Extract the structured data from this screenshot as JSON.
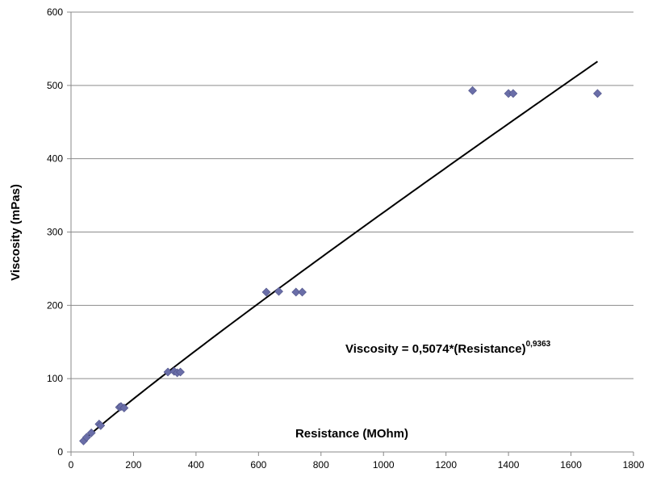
{
  "chart_data": {
    "type": "scatter",
    "xlabel": "Resistance (MOhm)",
    "ylabel": "Viscosity (mPas)",
    "xlim": [
      0,
      1800
    ],
    "ylim": [
      0,
      600
    ],
    "x_ticks": [
      "0",
      "200",
      "400",
      "600",
      "800",
      "1000",
      "1200",
      "1400",
      "1600",
      "1800"
    ],
    "y_ticks": [
      "0",
      "100",
      "200",
      "300",
      "400",
      "500",
      "600"
    ],
    "grid": "horizontal",
    "marker_color": "#6a6ea8",
    "series": [
      {
        "points": [
          [
            40,
            15
          ],
          [
            50,
            20
          ],
          [
            65,
            26
          ],
          [
            90,
            38
          ],
          [
            95,
            36
          ],
          [
            155,
            61
          ],
          [
            160,
            62
          ],
          [
            170,
            60
          ],
          [
            310,
            109
          ],
          [
            330,
            110
          ],
          [
            340,
            108
          ],
          [
            350,
            109
          ],
          [
            625,
            218
          ],
          [
            665,
            219
          ],
          [
            720,
            218
          ],
          [
            740,
            218
          ],
          [
            1285,
            493
          ],
          [
            1400,
            489
          ],
          [
            1415,
            489
          ],
          [
            1685,
            489
          ]
        ]
      }
    ],
    "trendline": {
      "type": "power",
      "coefficient": 0.5074,
      "exponent": 0.9363,
      "x_range": [
        40,
        1685
      ],
      "color": "#000000"
    },
    "equation": {
      "text": "Viscosity = 0,5074*(Resistance)",
      "superscript": "0,9363"
    }
  }
}
